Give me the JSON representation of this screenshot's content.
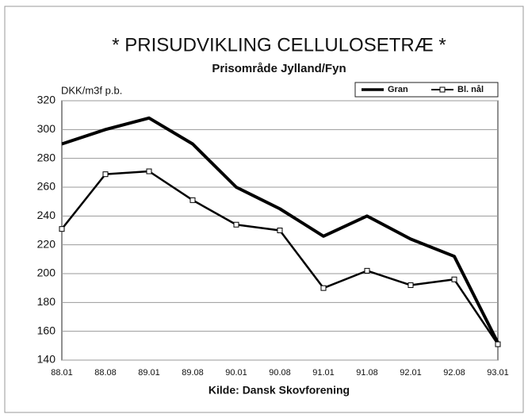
{
  "chart_data": {
    "type": "line",
    "title": "* PRISUDVIKLING CELLULOSETRÆ *",
    "subtitle": "Prisområde Jylland/Fyn",
    "y_label": "DKK/m3f p.b.",
    "x_label": "Kilde: Dansk Skovforening",
    "categories": [
      "88.01",
      "88.08",
      "89.01",
      "89.08",
      "90.01",
      "90.08",
      "91.01",
      "91.08",
      "92.01",
      "92.08",
      "93.01"
    ],
    "series": [
      {
        "name": "Gran",
        "color": "#000000",
        "values": [
          290,
          300,
          308,
          290,
          260,
          245,
          226,
          240,
          224,
          212,
          152
        ]
      },
      {
        "name": "Bl. nål",
        "color": "#000000",
        "values": [
          231,
          269,
          271,
          251,
          234,
          230,
          190,
          202,
          192,
          196,
          151
        ]
      }
    ],
    "ylim": [
      140,
      320
    ],
    "yticks": [
      140,
      160,
      180,
      200,
      220,
      240,
      260,
      280,
      300,
      320
    ],
    "grid": true,
    "legend": "top-right"
  }
}
